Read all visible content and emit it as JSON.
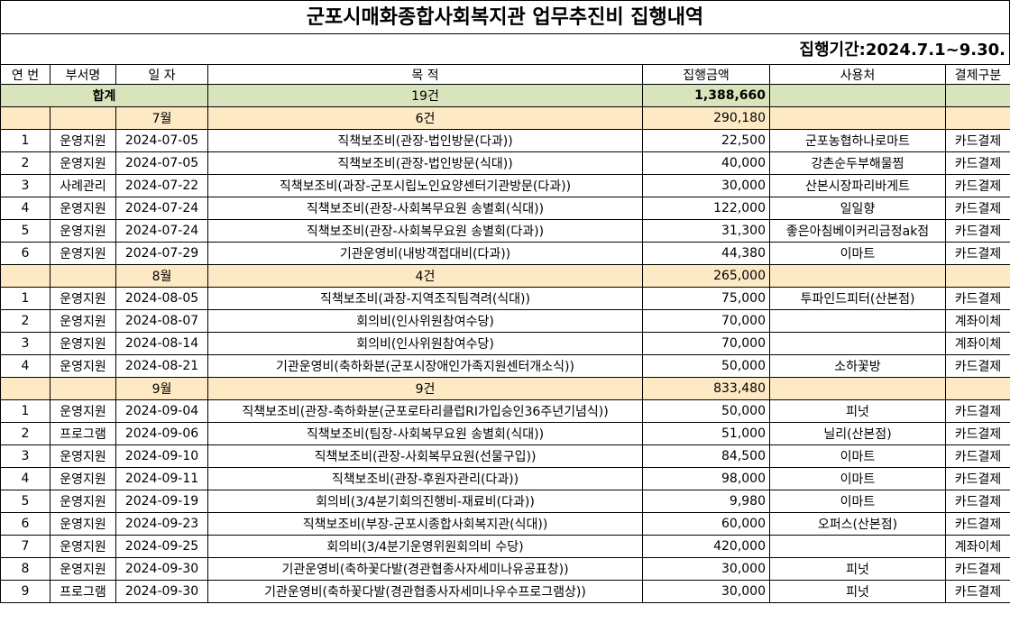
{
  "title": "군포시매화종합사회복지관 업무추진비 집행내역",
  "period": "집행기간:2024.7.1~9.30.",
  "header": [
    "연 번",
    "부서명",
    "일 자",
    "목 적",
    "집행금액",
    "사용처",
    "결제구분"
  ],
  "total": {
    "label": "합계",
    "count": "19건",
    "amount": "1,388,660"
  },
  "groups": [
    {
      "month": "7월",
      "count": "6건",
      "amount": "290,180",
      "rows": [
        [
          "1",
          "운영지원",
          "2024-07-05",
          "직책보조비(관장-법인방문(다과))",
          "22,500",
          "군포농협하나로마트",
          "카드결제"
        ],
        [
          "2",
          "운영지원",
          "2024-07-05",
          "직책보조비(관장-법인방문(식대))",
          "40,000",
          "강촌순두부해물찜",
          "카드결제"
        ],
        [
          "3",
          "사례관리",
          "2024-07-22",
          "직책보조비(과장-군포시립노인요양센터기관방문(다과))",
          "30,000",
          "산본시장파리바게트",
          "카드결제"
        ],
        [
          "4",
          "운영지원",
          "2024-07-24",
          "직책보조비(관장-사회복무요원 송별회(식대))",
          "122,000",
          "일일향",
          "카드결제"
        ],
        [
          "5",
          "운영지원",
          "2024-07-24",
          "직책보조비(관장-사회복무요원 송별회(다과))",
          "31,300",
          "좋은아침베이커리금정ak점",
          "카드결제"
        ],
        [
          "6",
          "운영지원",
          "2024-07-29",
          "기관운영비(내방객접대비(다과))",
          "44,380",
          "이마트",
          "카드결제"
        ]
      ]
    },
    {
      "month": "8월",
      "count": "4건",
      "amount": "265,000",
      "rows": [
        [
          "1",
          "운영지원",
          "2024-08-05",
          "직책보조비(과장-지역조직팀격려(식대))",
          "75,000",
          "투파인드피터(산본점)",
          "카드결제"
        ],
        [
          "2",
          "운영지원",
          "2024-08-07",
          "회의비(인사위원참여수당)",
          "70,000",
          null,
          "계좌이체"
        ],
        [
          "3",
          "운영지원",
          "2024-08-14",
          "회의비(인사위원참여수당)",
          "70,000",
          null,
          "계좌이체"
        ],
        [
          "4",
          "운영지원",
          "2024-08-21",
          "기관운영비(축하화분(군포시장애인가족지원센터개소식))",
          "50,000",
          "소하꽃방",
          "카드결제"
        ]
      ]
    },
    {
      "month": "9월",
      "count": "9건",
      "amount": "833,480",
      "rows": [
        [
          "1",
          "운영지원",
          "2024-09-04",
          "직책보조비(관장-축하화분(군포로타리클럽RI가입승인36주년기념식))",
          "50,000",
          "피넛",
          "카드결제"
        ],
        [
          "2",
          "프로그램",
          "2024-09-06",
          "직책보조비(팀장-사회복무요원 송별회(식대))",
          "51,000",
          "닐리(산본점)",
          "카드결제"
        ],
        [
          "3",
          "운영지원",
          "2024-09-10",
          "직책보조비(관장-사회복무요원(선물구입))",
          "84,500",
          "이마트",
          "카드결제"
        ],
        [
          "4",
          "운영지원",
          "2024-09-11",
          "직책보조비(관장-후원자관리(다과))",
          "98,000",
          "이마트",
          "카드결제"
        ],
        [
          "5",
          "운영지원",
          "2024-09-19",
          "회의비(3/4분기회의진행비-재료비(다과))",
          "9,980",
          "이마트",
          "카드결제"
        ],
        [
          "6",
          "운영지원",
          "2024-09-23",
          "직책보조비(부장-군포시종합사회복지관(식대))",
          "60,000",
          "오퍼스(산본점)",
          "카드결제"
        ],
        [
          "7",
          "운영지원",
          "2024-09-25",
          "회의비(3/4분기운영위원회의비 수당)",
          "420,000",
          null,
          "계좌이체"
        ],
        [
          "8",
          "운영지원",
          "2024-09-30",
          "기관운영비(축하꽃다발(경관협종사자세미나유공표창))",
          "30,000",
          "피넛",
          "카드결제"
        ],
        [
          "9",
          "프로그램",
          "2024-09-30",
          "기관운영비(축하꽃다발(경관협종사자세미나우수프로그램상))",
          "30,000",
          "피넛",
          "카드결제"
        ]
      ]
    }
  ]
}
